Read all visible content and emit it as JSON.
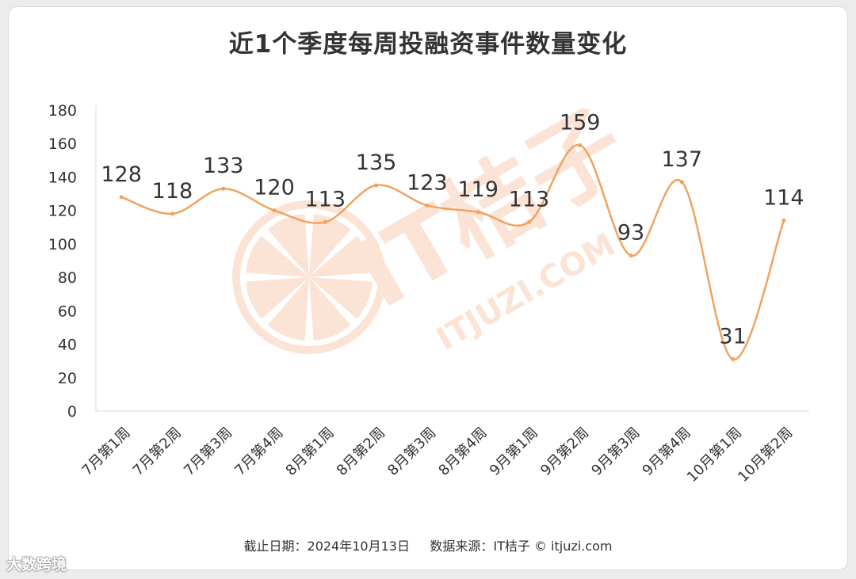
{
  "chart_data": {
    "type": "line",
    "title": "近1个季度每周投融资事件数量变化",
    "categories": [
      "7月第1周",
      "7月第2周",
      "7月第3周",
      "7月第4周",
      "8月第1周",
      "8月第2周",
      "8月第3周",
      "8月第4周",
      "9月第1周",
      "9月第2周",
      "9月第3周",
      "9月第4周",
      "10月第1周",
      "10月第2周"
    ],
    "series": [
      {
        "values": [
          128,
          118,
          133,
          120,
          113,
          135,
          123,
          119,
          113,
          159,
          93,
          137,
          31,
          114
        ]
      }
    ],
    "ylim": [
      0,
      180
    ],
    "yticks": [
      0,
      20,
      40,
      60,
      80,
      100,
      120,
      140,
      160,
      180
    ],
    "smooth": true,
    "data_labels": true,
    "grid": false,
    "line_color": "#f0a35e"
  },
  "footer": "截止日期：2024年10月13日     数据来源：IT桔子 © itjuzi.com",
  "watermark": {
    "text": "IT桔子",
    "subtext": "ITJUZI.COM",
    "color": "#fbe3d6"
  },
  "corner_mark": "大数跨境"
}
